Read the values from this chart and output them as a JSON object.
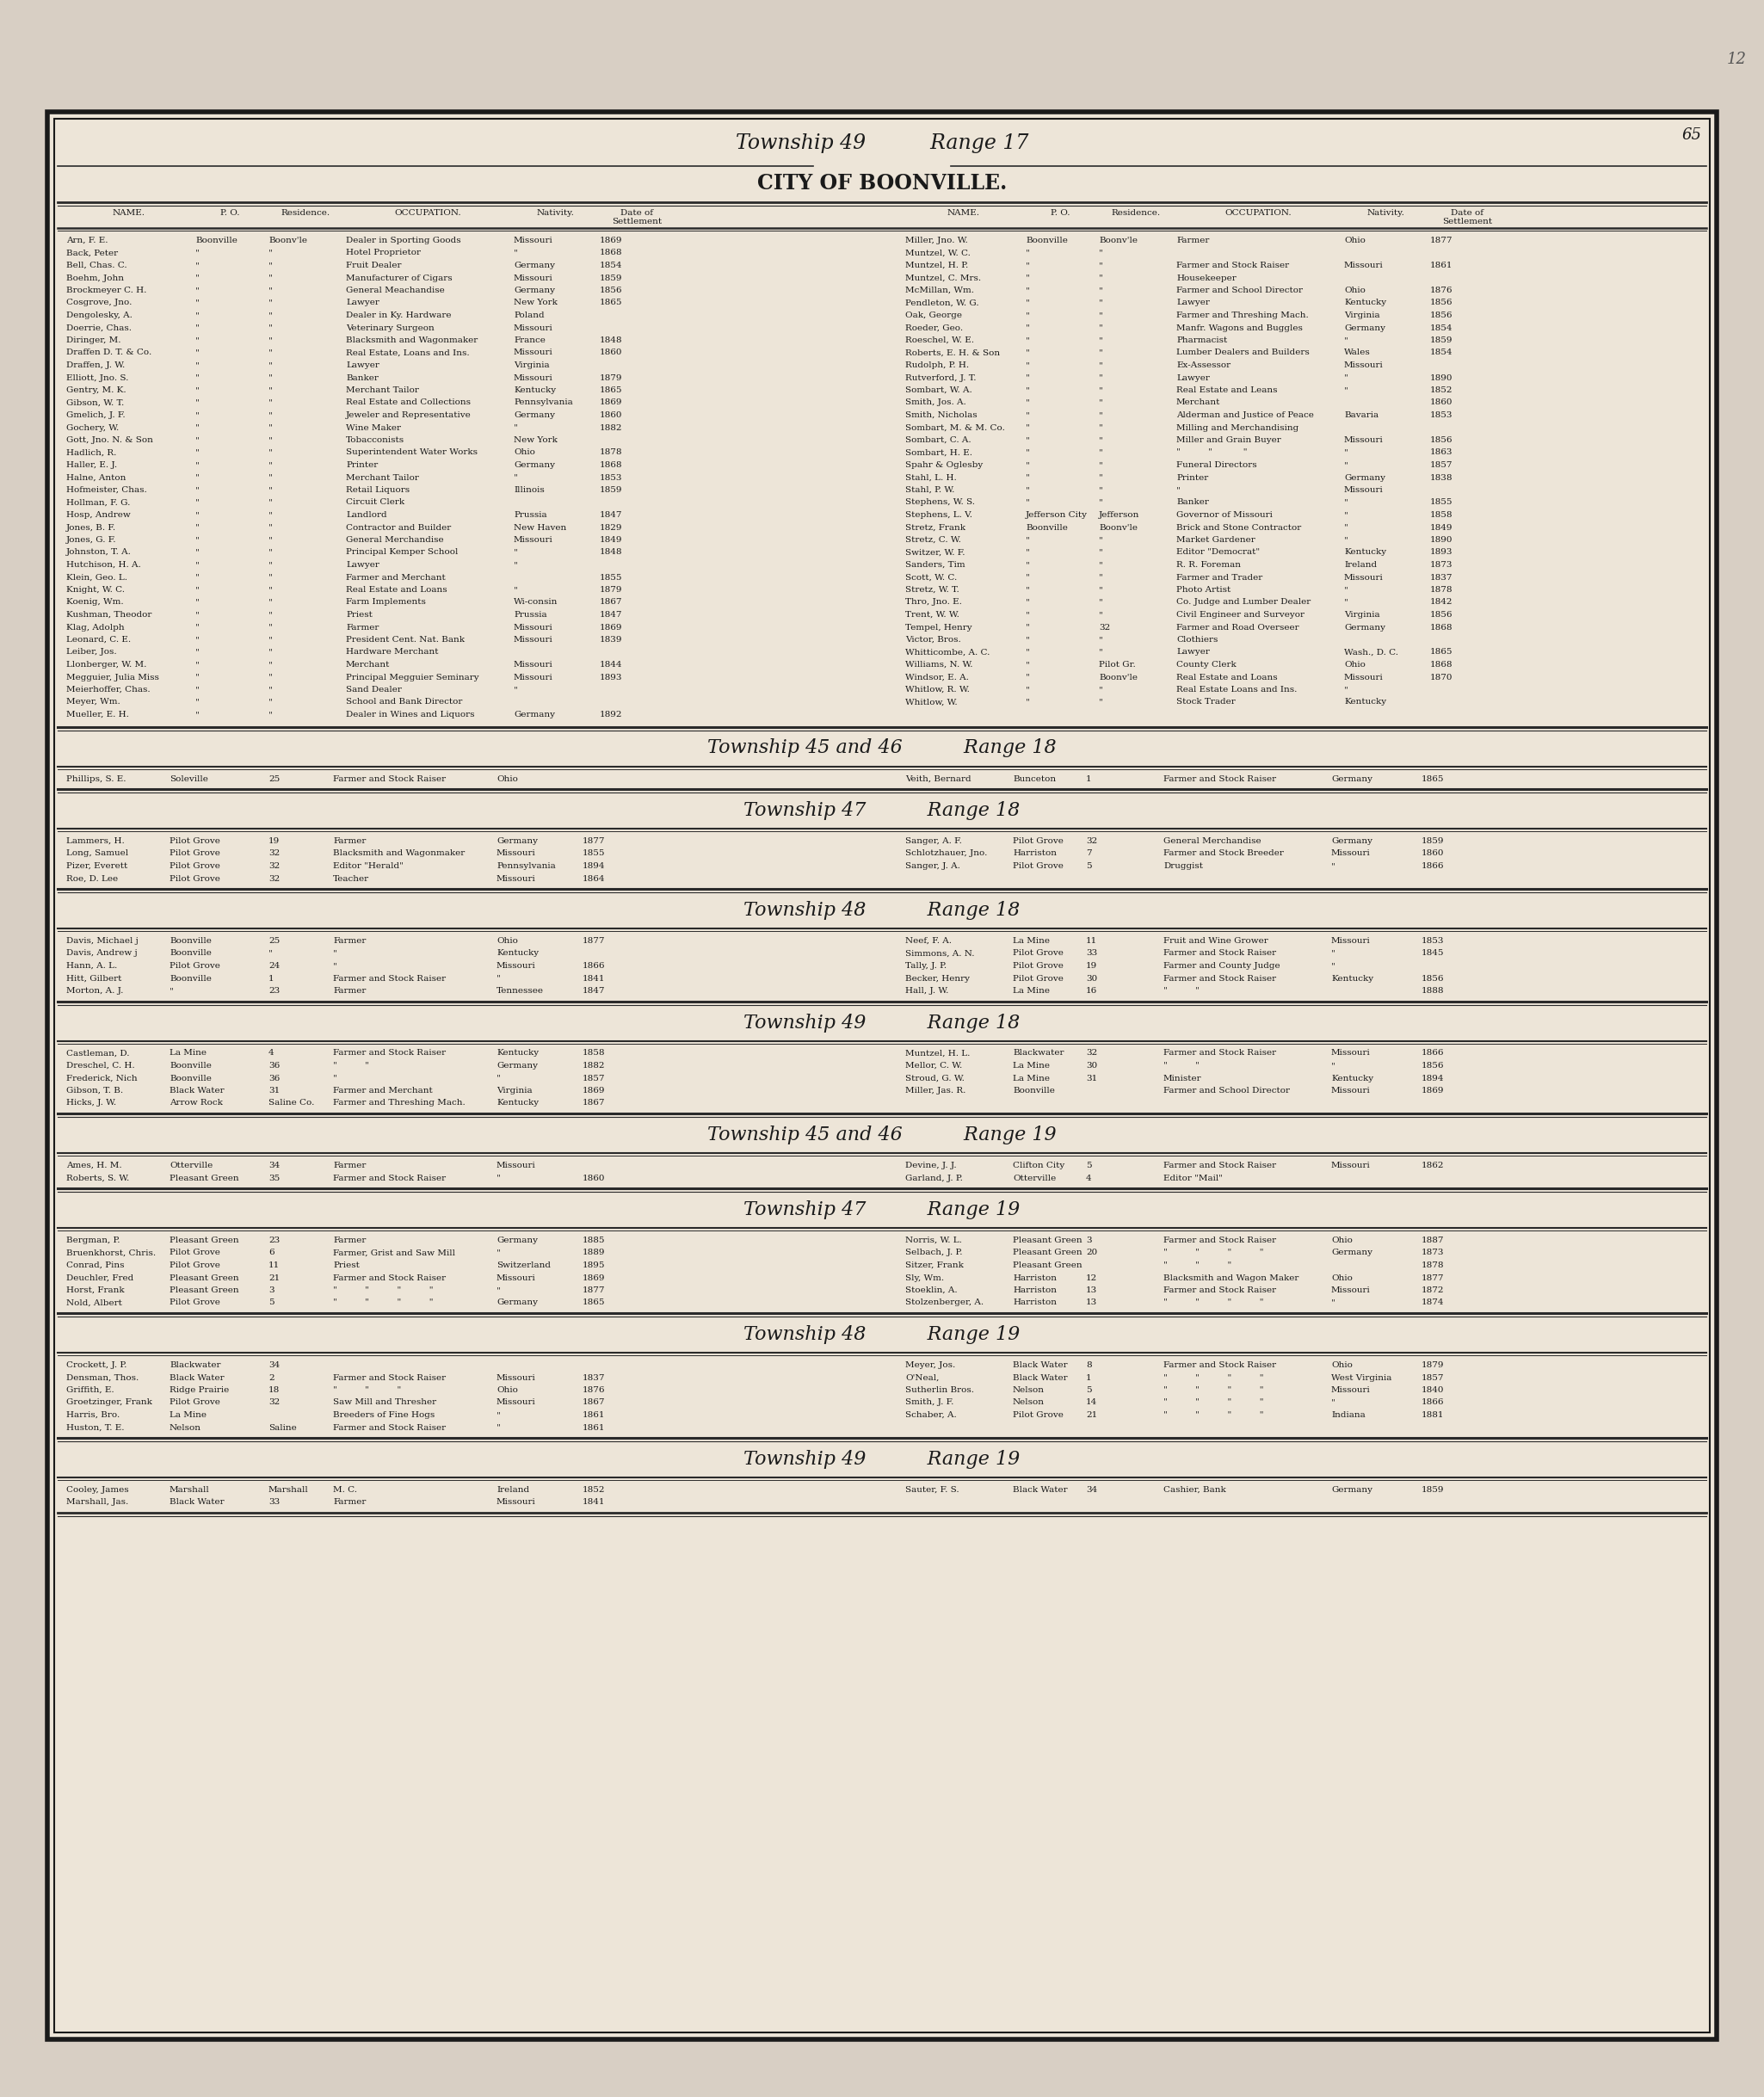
{
  "page_number": "65",
  "page_number2": "12",
  "bg_color": "#d8cfc4",
  "paper_color": "#ede5d8",
  "twp49_rng17_left": [
    [
      "Arn, F. E.",
      "Boonville",
      "Boonv'le",
      "Dealer in Sporting Goods",
      "Missouri",
      "1869"
    ],
    [
      "Back, Peter",
      "\"",
      "\"",
      "Hotel Proprietor",
      "\"",
      "1868"
    ],
    [
      "Bell, Chas. C.",
      "\"",
      "\"",
      "Fruit Dealer",
      "Germany",
      "1854"
    ],
    [
      "Boehm, John",
      "\"",
      "\"",
      "Manufacturer of Cigars",
      "Missouri",
      "1859"
    ],
    [
      "Brockmeyer C. H.",
      "\"",
      "\"",
      "General Meachandise",
      "Germany",
      "1856"
    ],
    [
      "Cosgrove, Jno.",
      "\"",
      "\"",
      "Lawyer",
      "New York",
      "1865"
    ],
    [
      "Dengolesky, A.",
      "\"",
      "\"",
      "Dealer in Ky. Hardware",
      "Poland",
      ""
    ],
    [
      "Doerrie, Chas.",
      "\"",
      "\"",
      "Veterinary Surgeon",
      "Missouri",
      ""
    ],
    [
      "Diringer, M.",
      "\"",
      "\"",
      "Blacksmith and Wagonmaker",
      "France",
      "1848"
    ],
    [
      "Draffen D. T. & Co.",
      "\"",
      "\"",
      "Real Estate, Loans and Ins.",
      "Missouri",
      "1860"
    ],
    [
      "Draffen, J. W.",
      "\"",
      "\"",
      "Lawyer",
      "Virginia",
      ""
    ],
    [
      "Elliott, Jno. S.",
      "\"",
      "\"",
      "Banker",
      "Missouri",
      "1879"
    ],
    [
      "Gentry, M. K.",
      "\"",
      "\"",
      "Merchant Tailor",
      "Kentucky",
      "1865"
    ],
    [
      "Gibson, W. T.",
      "\"",
      "\"",
      "Real Estate and Collections",
      "Pennsylvania",
      "1869"
    ],
    [
      "Gmelich, J. F.",
      "\"",
      "\"",
      "Jeweler and Representative",
      "Germany",
      "1860"
    ],
    [
      "Gochery, W.",
      "\"",
      "\"",
      "Wine Maker",
      "\"",
      "1882"
    ],
    [
      "Gott, Jno. N. & Son",
      "\"",
      "\"",
      "Tobacconists",
      "New York",
      ""
    ],
    [
      "Hadlich, R.",
      "\"",
      "\"",
      "Superintendent Water Works",
      "Ohio",
      "1878"
    ],
    [
      "Haller, E. J.",
      "\"",
      "\"",
      "Printer",
      "Germany",
      "1868"
    ],
    [
      "Halne, Anton",
      "\"",
      "\"",
      "Merchant Tailor",
      "\"",
      "1853"
    ],
    [
      "Hofmeister, Chas.",
      "\"",
      "\"",
      "Retail Liquors",
      "Illinois",
      "1859"
    ],
    [
      "Hollman, F. G.",
      "\"",
      "\"",
      "Circuit Clerk",
      "",
      ""
    ],
    [
      "Hosp, Andrew",
      "\"",
      "\"",
      "Landlord",
      "Prussia",
      "1847"
    ],
    [
      "Jones, B. F.",
      "\"",
      "\"",
      "Contractor and Builder",
      "New Haven",
      "1829"
    ],
    [
      "Jones, G. F.",
      "\"",
      "\"",
      "General Merchandise",
      "Missouri",
      "1849"
    ],
    [
      "Johnston, T. A.",
      "\"",
      "\"",
      "Principal Kemper School",
      "\"",
      "1848"
    ],
    [
      "Hutchison, H. A.",
      "\"",
      "\"",
      "Lawyer",
      "\"",
      ""
    ],
    [
      "Klein, Geo. L.",
      "\"",
      "\"",
      "Farmer and Merchant",
      "",
      "1855"
    ],
    [
      "Knight, W. C.",
      "\"",
      "\"",
      "Real Estate and Loans",
      "\"",
      "1879"
    ],
    [
      "Koenig, Wm.",
      "\"",
      "\"",
      "Farm Implements",
      "Wi-consin",
      "1867"
    ],
    [
      "Kushman, Theodor",
      "\"",
      "\"",
      "Priest",
      "Prussia",
      "1847"
    ],
    [
      "Klag, Adolph",
      "\"",
      "\"",
      "Farmer",
      "Missouri",
      "1869"
    ],
    [
      "Leonard, C. E.",
      "\"",
      "\"",
      "President Cent. Nat. Bank",
      "Missouri",
      "1839"
    ],
    [
      "Leiber, Jos.",
      "\"",
      "\"",
      "Hardware Merchant",
      "",
      ""
    ],
    [
      "Llonberger, W. M.",
      "\"",
      "\"",
      "Merchant",
      "Missouri",
      "1844"
    ],
    [
      "Megguier, Julia Miss",
      "\"",
      "\"",
      "Principal Megguier Seminary",
      "Missouri",
      "1893"
    ],
    [
      "Meierhoffer, Chas.",
      "\"",
      "\"",
      "Sand Dealer",
      "\"",
      ""
    ],
    [
      "Meyer, Wm.",
      "\"",
      "\"",
      "School and Bank Director",
      "",
      ""
    ],
    [
      "Mueller, E. H.",
      "\"",
      "\"",
      "Dealer in Wines and Liquors",
      "Germany",
      "1892"
    ]
  ],
  "twp49_rng17_right": [
    [
      "Miller, Jno. W.",
      "Boonville",
      "Boonv'le",
      "Farmer",
      "Ohio",
      "1877"
    ],
    [
      "Muntzel, W. C.",
      "\"",
      "\"",
      "",
      "",
      ""
    ],
    [
      "Muntzel, H. P.",
      "\"",
      "\"",
      "Farmer and Stock Raiser",
      "Missouri",
      "1861"
    ],
    [
      "Muntzel, C. Mrs.",
      "\"",
      "\"",
      "Housekeeper",
      "",
      ""
    ],
    [
      "McMillan, Wm.",
      "\"",
      "\"",
      "Farmer and School Director",
      "Ohio",
      "1876"
    ],
    [
      "Pendleton, W. G.",
      "\"",
      "\"",
      "Lawyer",
      "Kentucky",
      "1856"
    ],
    [
      "Oak, George",
      "\"",
      "\"",
      "Farmer and Threshing Mach.",
      "Virginia",
      "1856"
    ],
    [
      "Roeder, Geo.",
      "\"",
      "\"",
      "Manfr. Wagons and Buggles",
      "Germany",
      "1854"
    ],
    [
      "Roeschel, W. E.",
      "\"",
      "\"",
      "Pharmacist",
      "\"",
      "1859"
    ],
    [
      "Roberts, E. H. & Son",
      "\"",
      "\"",
      "Lumber Dealers and Builders",
      "Wales",
      "1854"
    ],
    [
      "Rudolph, P. H.",
      "\"",
      "\"",
      "Ex-Assessor",
      "Missouri",
      ""
    ],
    [
      "Rutverford, J. T.",
      "\"",
      "\"",
      "Lawyer",
      "\"",
      "1890"
    ],
    [
      "Sombart, W. A.",
      "\"",
      "\"",
      "Real Estate and Leans",
      "\"",
      "1852"
    ],
    [
      "Smith, Jos. A.",
      "\"",
      "\"",
      "Merchant",
      "",
      "1860"
    ],
    [
      "Smith, Nicholas",
      "\"",
      "\"",
      "Alderman and Justice of Peace",
      "Bavaria",
      "1853"
    ],
    [
      "Sombart, M. & M. Co.",
      "\"",
      "\"",
      "Milling and Merchandising",
      "",
      ""
    ],
    [
      "Sombart, C. A.",
      "\"",
      "\"",
      "Miller and Grain Buyer",
      "Missouri",
      "1856"
    ],
    [
      "Sombart, H. E.",
      "\"",
      "\"",
      "\"          \"           \"",
      "\"",
      "1863"
    ],
    [
      "Spahr & Oglesby",
      "\"",
      "\"",
      "Funeral Directors",
      "\"",
      "1857"
    ],
    [
      "Stahl, L. H.",
      "\"",
      "\"",
      "Printer",
      "Germany",
      "1838"
    ],
    [
      "Stahl, P. W.",
      "\"",
      "\"",
      "\"",
      "Missouri",
      ""
    ],
    [
      "Stephens, W. S.",
      "\"",
      "\"",
      "Banker",
      "\"",
      "1855"
    ],
    [
      "Stephens, L. V.",
      "Jefferson City",
      "Jefferson",
      "Governor of Missouri",
      "\"",
      "1858"
    ],
    [
      "Stretz, Frank",
      "Boonville",
      "Boonv'le",
      "Brick and Stone Contractor",
      "\"",
      "1849"
    ],
    [
      "Stretz, C. W.",
      "\"",
      "\"",
      "Market Gardener",
      "\"",
      "1890"
    ],
    [
      "Switzer, W. F.",
      "\"",
      "\"",
      "Editor \"Democrat\"",
      "Kentucky",
      "1893"
    ],
    [
      "Sanders, Tim",
      "\"",
      "\"",
      "R. R. Foreman",
      "Ireland",
      "1873"
    ],
    [
      "Scott, W. C.",
      "\"",
      "\"",
      "Farmer and Trader",
      "Missouri",
      "1837"
    ],
    [
      "Stretz, W. T.",
      "\"",
      "\"",
      "Photo Artist",
      "\"",
      "1878"
    ],
    [
      "Thro, Jno. E.",
      "\"",
      "\"",
      "Co. Judge and Lumber Dealer",
      "\"",
      "1842"
    ],
    [
      "Trent, W. W.",
      "\"",
      "\"",
      "Civil Engineer and Surveyor",
      "Virginia",
      "1856"
    ],
    [
      "Tempel, Henry",
      "\"",
      "32",
      "Farmer and Road Overseer",
      "Germany",
      "1868"
    ],
    [
      "Victor, Bros.",
      "\"",
      "\"",
      "Clothiers",
      "",
      ""
    ],
    [
      "Whitticombe, A. C.",
      "\"",
      "\"",
      "Lawyer",
      "Wash., D. C.",
      "1865"
    ],
    [
      "Williams, N. W.",
      "\"",
      "Pilot Gr.",
      "County Clerk",
      "Ohio",
      "1868"
    ],
    [
      "Windsor, E. A.",
      "\"",
      "Boonv'le",
      "Real Estate and Loans",
      "Missouri",
      "1870"
    ],
    [
      "Whitlow, R. W.",
      "\"",
      "\"",
      "Real Estate Loans and Ins.",
      "\"",
      ""
    ],
    [
      "Whitlow, W.",
      "\"",
      "\"",
      "Stock Trader",
      "Kentucky",
      ""
    ]
  ],
  "twp45_46_rng18_header": "Township 45 and 46          Range 18",
  "twp45_46_rng18": [
    [
      "Phillips, S. E.",
      "Soleville",
      "25",
      "Farmer and Stock Raiser",
      "Ohio",
      "",
      "Veith, Bernard",
      "Bunceton",
      "1",
      "Farmer and Stock Raiser",
      "Germany",
      "1865"
    ]
  ],
  "twp47_rng18_header": "Township 47          Range 18",
  "twp47_rng18": [
    [
      "Lammers, H.",
      "Pilot Grove",
      "19",
      "Farmer",
      "Germany",
      "1877",
      "Sanger, A. F.",
      "Pilot Grove",
      "32",
      "General Merchandise",
      "Germany",
      "1859"
    ],
    [
      "Long, Samuel",
      "Pilot Grove",
      "32",
      "Blacksmith and Wagonmaker",
      "Missouri",
      "1855",
      "Schlotzhauer, Jno.",
      "Harriston",
      "7",
      "Farmer and Stock Breeder",
      "Missouri",
      "1860"
    ],
    [
      "Pizer, Everett",
      "Pilot Grove",
      "32",
      "Editor \"Herald\"",
      "Pennsylvania",
      "1894",
      "Sanger, J. A.",
      "Pilot Grove",
      "5",
      "Druggist",
      "\"",
      "1866"
    ],
    [
      "Roe, D. Lee",
      "Pilot Grove",
      "32",
      "Teacher",
      "Missouri",
      "1864",
      "",
      "",
      "",
      "",
      "",
      ""
    ]
  ],
  "twp48_rng18_header": "Township 48          Range 18",
  "twp48_rng18": [
    [
      "Davis, Michael j",
      "Boonville",
      "25",
      "Farmer",
      "Ohio",
      "1877",
      "Neef, F. A.",
      "La Mine",
      "11",
      "Fruit and Wine Grower",
      "Missouri",
      "1853"
    ],
    [
      "Davis, Andrew j",
      "Boonville",
      "\"",
      "\"",
      "Kentucky",
      "",
      "Simmons, A. N.",
      "Pilot Grove",
      "33",
      "Farmer and Stock Raiser",
      "\"",
      "1845"
    ],
    [
      "Hann, A. L.",
      "Pilot Grove",
      "24",
      "\"",
      "Missouri",
      "1866",
      "Tally, J. P.",
      "Pilot Grove",
      "19",
      "Farmer and County Judge",
      "\"",
      ""
    ],
    [
      "Hitt, Gilbert",
      "Boonville",
      "1",
      "Farmer and Stock Raiser",
      "\"",
      "1841",
      "Becker, Henry",
      "Pilot Grove",
      "30",
      "Farmer and Stock Raiser",
      "Kentucky",
      "1856"
    ],
    [
      "Morton, A. J.",
      "\"",
      "23",
      "Farmer",
      "Tennessee",
      "1847",
      "Hall, J. W.",
      "La Mine",
      "16",
      "\"          \"",
      "",
      "1888"
    ]
  ],
  "twp49_rng18_header": "Township 49          Range 18",
  "twp49_rng18": [
    [
      "Castleman, D.",
      "La Mine",
      "4",
      "Farmer and Stock Raiser",
      "Kentucky",
      "1858",
      "Muntzel, H. L.",
      "Blackwater",
      "32",
      "Farmer and Stock Raiser",
      "Missouri",
      "1866"
    ],
    [
      "Dreschel, C. H.",
      "Boonville",
      "36",
      "\"          \"",
      "Germany",
      "1882",
      "Mellor, C. W.",
      "La Mine",
      "30",
      "\"          \"",
      "\"",
      "1856"
    ],
    [
      "Frederick, Nich",
      "Boonville",
      "36",
      "\"",
      "\"",
      "1857",
      "Stroud, G. W.",
      "La Mine",
      "31",
      "Minister",
      "Kentucky",
      "1894"
    ],
    [
      "Gibson, T. B.",
      "Black Water",
      "31",
      "Farmer and Merchant",
      "Virginia",
      "1869",
      "Miller, Jas. R.",
      "Boonville",
      "",
      "Farmer and School Director",
      "Missouri",
      "1869"
    ],
    [
      "Hicks, J. W.",
      "Arrow Rock",
      "Saline Co.",
      "Farmer and Threshing Mach.",
      "Kentucky",
      "1867",
      "",
      "",
      "",
      "",
      "",
      ""
    ]
  ],
  "twp45_46_rng19_header": "Township 45 and 46          Range 19",
  "twp45_46_rng19": [
    [
      "Ames, H. M.",
      "Otterville",
      "34",
      "Farmer",
      "Missouri",
      "",
      "Devine, J. J.",
      "Clifton City",
      "5",
      "Farmer and Stock Raiser",
      "Missouri",
      "1862"
    ],
    [
      "Roberts, S. W.",
      "Pleasant Green",
      "35",
      "Farmer and Stock Raiser",
      "\"",
      "1860",
      "Garland, J. P.",
      "Otterville",
      "4",
      "Editor \"Mail\"",
      "",
      ""
    ]
  ],
  "twp47_rng19_header": "Township 47          Range 19",
  "twp47_rng19": [
    [
      "Bergman, P.",
      "Pleasant Green",
      "23",
      "Farmer",
      "Germany",
      "1885",
      "Norris, W. L.",
      "Pleasant Green",
      "3",
      "Farmer and Stock Raiser",
      "Ohio",
      "1887"
    ],
    [
      "Bruenkhorst, Chris.",
      "Pilot Grove",
      "6",
      "Farmer, Grist and Saw Mill",
      "\"",
      "1889",
      "Selbach, J. P.",
      "Pleasant Green",
      "20",
      "\"          \"          \"          \"",
      "Germany",
      "1873"
    ],
    [
      "Conrad, Pins",
      "Pilot Grove",
      "11",
      "Priest",
      "Switzerland",
      "1895",
      "Sitzer, Frank",
      "Pleasant Green",
      "",
      "\"          \"          \"",
      "",
      "1878"
    ],
    [
      "Deuchler, Fred",
      "Pleasant Green",
      "21",
      "Farmer and Stock Raiser",
      "Missouri",
      "1869",
      "Sly, Wm.",
      "Harriston",
      "12",
      "Blacksmith and Wagon Maker",
      "Ohio",
      "1877"
    ],
    [
      "Horst, Frank",
      "Pleasant Green",
      "3",
      "\"          \"          \"          \"",
      "\"",
      "1877",
      "Stoeklin, A.",
      "Harriston",
      "13",
      "Farmer and Stock Raiser",
      "Missouri",
      "1872"
    ],
    [
      "Nold, Albert",
      "Pilot Grove",
      "5",
      "\"          \"          \"          \"",
      "Germany",
      "1865",
      "Stolzenberger, A.",
      "Harriston",
      "13",
      "\"          \"          \"          \"",
      "\"",
      "1874"
    ]
  ],
  "twp48_rng19_header": "Township 48          Range 19",
  "twp48_rng19": [
    [
      "Crockett, J. P.",
      "Blackwater",
      "34",
      "",
      "",
      "",
      "Meyer, Jos.",
      "Black Water",
      "8",
      "Farmer and Stock Raiser",
      "Ohio",
      "1879"
    ],
    [
      "Densman, Thos.",
      "Black Water",
      "2",
      "Farmer and Stock Raiser",
      "Missouri",
      "1837",
      "O'Neal,",
      "Black Water",
      "1",
      "\"          \"          \"          \"",
      "West Virginia",
      "1857"
    ],
    [
      "Griffith, E.",
      "Ridge Prairie",
      "18",
      "\"          \"          \"",
      "Ohio",
      "1876",
      "Sutherlin Bros.",
      "Nelson",
      "5",
      "\"          \"          \"          \"",
      "Missouri",
      "1840"
    ],
    [
      "Groetzinger, Frank",
      "Pilot Grove",
      "32",
      "Saw Mill and Thresher",
      "Missouri",
      "1867",
      "Smith, J. F.",
      "Nelson",
      "14",
      "\"          \"          \"          \"",
      "\"",
      "1866"
    ],
    [
      "Harris, Bro.",
      "La Mine",
      "",
      "Breeders of Fine Hogs",
      "\"",
      "1861",
      "Schaber, A.",
      "Pilot Grove",
      "21",
      "\"          \"          \"          \"",
      "Indiana",
      "1881"
    ],
    [
      "Huston, T. E.",
      "Nelson",
      "Saline",
      "Farmer and Stock Raiser",
      "\"",
      "1861",
      "",
      "",
      "",
      "",
      "",
      ""
    ]
  ],
  "twp49_rng19_header": "Township 49          Range 19",
  "twp49_rng19": [
    [
      "Cooley, James",
      "Marshall",
      "Marshall",
      "M. C.",
      "Ireland",
      "1852",
      "Sauter, F. S.",
      "Black Water",
      "34",
      "Cashier, Bank",
      "Germany",
      "1859"
    ],
    [
      "Marshall, Jas.",
      "Black Water",
      "33",
      "Farmer",
      "Missouri",
      "1841",
      "",
      "",
      "",
      "",
      "",
      ""
    ]
  ]
}
